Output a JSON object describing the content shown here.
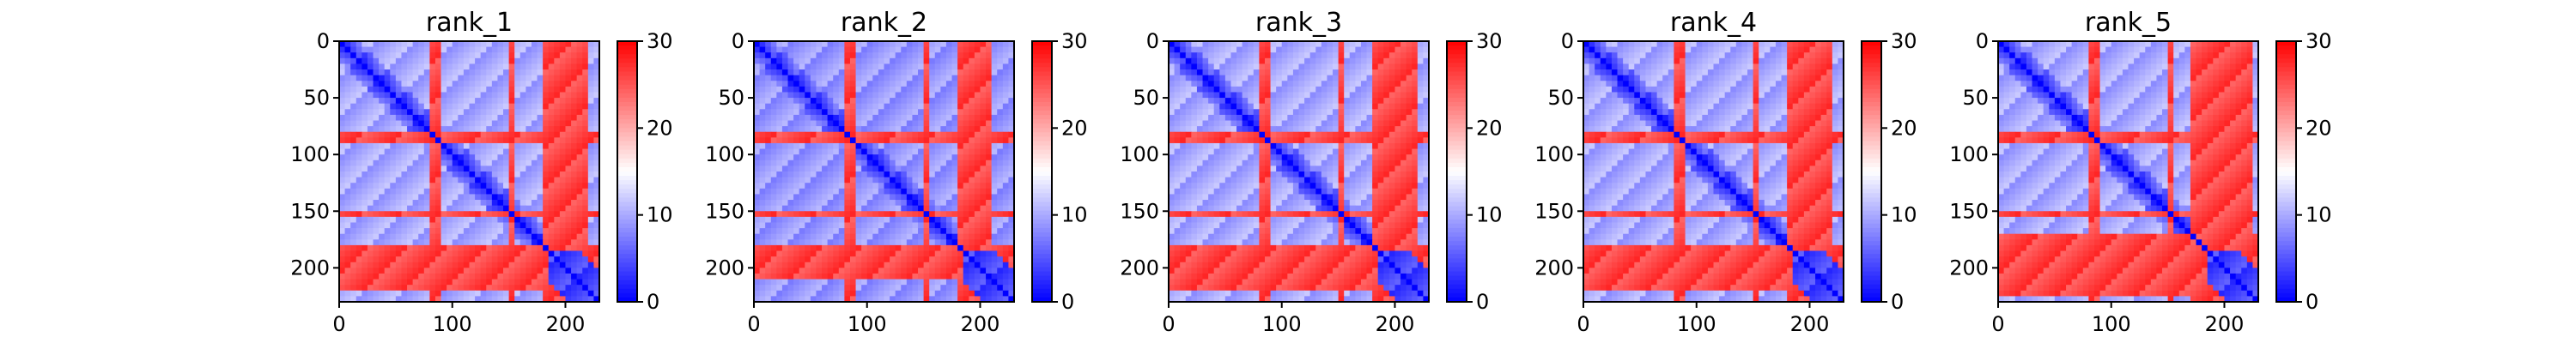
{
  "chart_data": [
    {
      "type": "heatmap",
      "title": "rank_1",
      "xlabel": "",
      "ylabel": "",
      "xlim": [
        0,
        230
      ],
      "ylim": [
        230,
        0
      ],
      "x_ticks": [
        0,
        100,
        200
      ],
      "y_ticks": [
        0,
        50,
        100,
        150,
        200
      ],
      "colorbar": {
        "min": 0,
        "max": 30,
        "ticks": [
          0,
          10,
          20,
          30
        ],
        "colormap": "bwr"
      },
      "regions": {
        "hot_rows": [
          [
            80,
            92
          ],
          [
            148,
            156
          ],
          [
            180,
            220
          ]
        ],
        "hot_cols": [
          [
            188,
            210
          ]
        ],
        "diagonal_min": 0,
        "background": 10
      }
    },
    {
      "type": "heatmap",
      "title": "rank_2",
      "xlabel": "",
      "ylabel": "",
      "xlim": [
        0,
        230
      ],
      "ylim": [
        230,
        0
      ],
      "x_ticks": [
        0,
        100,
        200
      ],
      "y_ticks": [
        0,
        50,
        100,
        150,
        200
      ],
      "colorbar": {
        "min": 0,
        "max": 30,
        "ticks": [
          0,
          10,
          20,
          30
        ],
        "colormap": "bwr"
      },
      "regions": {
        "hot_rows": [
          [
            80,
            92
          ],
          [
            148,
            156
          ],
          [
            182,
            205
          ]
        ],
        "hot_cols": [
          [
            188,
            210
          ]
        ],
        "diagonal_min": 0,
        "background": 9
      }
    },
    {
      "type": "heatmap",
      "title": "rank_3",
      "xlabel": "",
      "ylabel": "",
      "xlim": [
        0,
        230
      ],
      "ylim": [
        230,
        0
      ],
      "x_ticks": [
        0,
        100,
        200
      ],
      "y_ticks": [
        0,
        50,
        100,
        150,
        200
      ],
      "colorbar": {
        "min": 0,
        "max": 30,
        "ticks": [
          0,
          10,
          20,
          30
        ],
        "colormap": "bwr"
      },
      "regions": {
        "hot_rows": [
          [
            80,
            92
          ],
          [
            148,
            156
          ],
          [
            182,
            220
          ]
        ],
        "hot_cols": [
          [
            188,
            212
          ]
        ],
        "diagonal_min": 0,
        "background": 10
      }
    },
    {
      "type": "heatmap",
      "title": "rank_4",
      "xlabel": "",
      "ylabel": "",
      "xlim": [
        0,
        230
      ],
      "ylim": [
        230,
        0
      ],
      "x_ticks": [
        0,
        100,
        200
      ],
      "y_ticks": [
        0,
        50,
        100,
        150,
        200
      ],
      "colorbar": {
        "min": 0,
        "max": 30,
        "ticks": [
          0,
          10,
          20,
          30
        ],
        "colormap": "bwr"
      },
      "regions": {
        "hot_rows": [
          [
            80,
            92
          ],
          [
            148,
            156
          ],
          [
            182,
            220
          ]
        ],
        "hot_cols": [
          [
            188,
            212
          ]
        ],
        "diagonal_min": 0,
        "background": 10
      }
    },
    {
      "type": "heatmap",
      "title": "rank_5",
      "xlabel": "",
      "ylabel": "",
      "xlim": [
        0,
        230
      ],
      "ylim": [
        230,
        0
      ],
      "x_ticks": [
        0,
        100,
        200
      ],
      "y_ticks": [
        0,
        50,
        100,
        150,
        200
      ],
      "colorbar": {
        "min": 0,
        "max": 30,
        "ticks": [
          0,
          10,
          20,
          30
        ],
        "colormap": "bwr"
      },
      "regions": {
        "hot_rows": [
          [
            80,
            92
          ],
          [
            148,
            156
          ],
          [
            172,
            220
          ]
        ],
        "hot_cols": [
          [
            185,
            225
          ]
        ],
        "diagonal_min": 0,
        "background": 10
      }
    }
  ]
}
